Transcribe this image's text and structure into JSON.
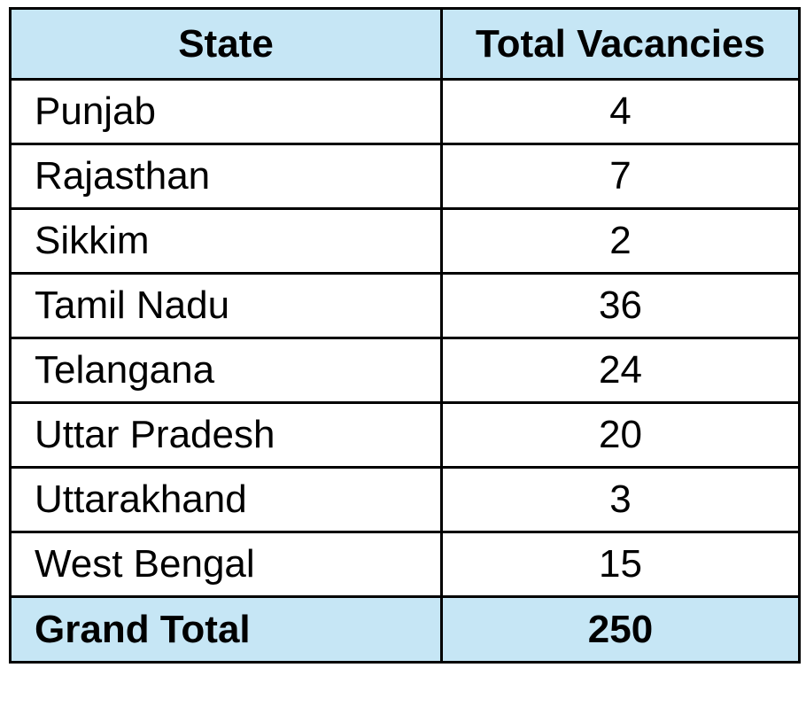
{
  "table": {
    "headers": {
      "state": "State",
      "vacancies": "Total Vacancies"
    },
    "rows": [
      {
        "state": "Punjab",
        "vacancies": "4"
      },
      {
        "state": "Rajasthan",
        "vacancies": "7"
      },
      {
        "state": "Sikkim",
        "vacancies": "2"
      },
      {
        "state": "Tamil Nadu",
        "vacancies": "36"
      },
      {
        "state": "Telangana",
        "vacancies": "24"
      },
      {
        "state": "Uttar Pradesh",
        "vacancies": "20"
      },
      {
        "state": "Uttarakhand",
        "vacancies": "3"
      },
      {
        "state": "West Bengal",
        "vacancies": "15"
      }
    ],
    "total": {
      "label": "Grand Total",
      "value": "250"
    },
    "colors": {
      "header_fill": "#c6e6f5",
      "border": "#000000"
    }
  }
}
